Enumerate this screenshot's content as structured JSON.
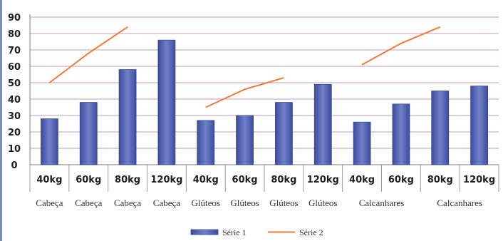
{
  "chart_data": {
    "type": "bar",
    "title": "",
    "xlabel": "",
    "ylabel": "",
    "ylim": [
      0,
      90
    ],
    "yticks": [
      0,
      10,
      20,
      30,
      40,
      50,
      60,
      70,
      80,
      90
    ],
    "grid": "horizontal",
    "legend_position": "bottom",
    "categories": [
      "40kg",
      "60kg",
      "80kg",
      "120kg",
      "40kg",
      "60kg",
      "80kg",
      "120kg",
      "40kg",
      "60kg",
      "80kg",
      "120kg"
    ],
    "group_labels": [
      "Cabeça",
      "Cabeça",
      "Cabeça",
      "Cabeça",
      "Glúteos",
      "Glúteos",
      "Glúteos",
      "Glúteos",
      "Calcanhares",
      "",
      "Calcanhares",
      ""
    ],
    "series": [
      {
        "name": "Série 1",
        "type": "bar",
        "color": "#4f5fae",
        "values": [
          28,
          38,
          58,
          76,
          27,
          30,
          38,
          49,
          26,
          37,
          45,
          48
        ]
      },
      {
        "name": "Série 2",
        "type": "line",
        "color": "#f07a3a",
        "values": [
          50,
          68,
          84,
          null,
          35,
          46,
          53,
          null,
          61,
          74,
          84,
          null
        ]
      }
    ]
  }
}
